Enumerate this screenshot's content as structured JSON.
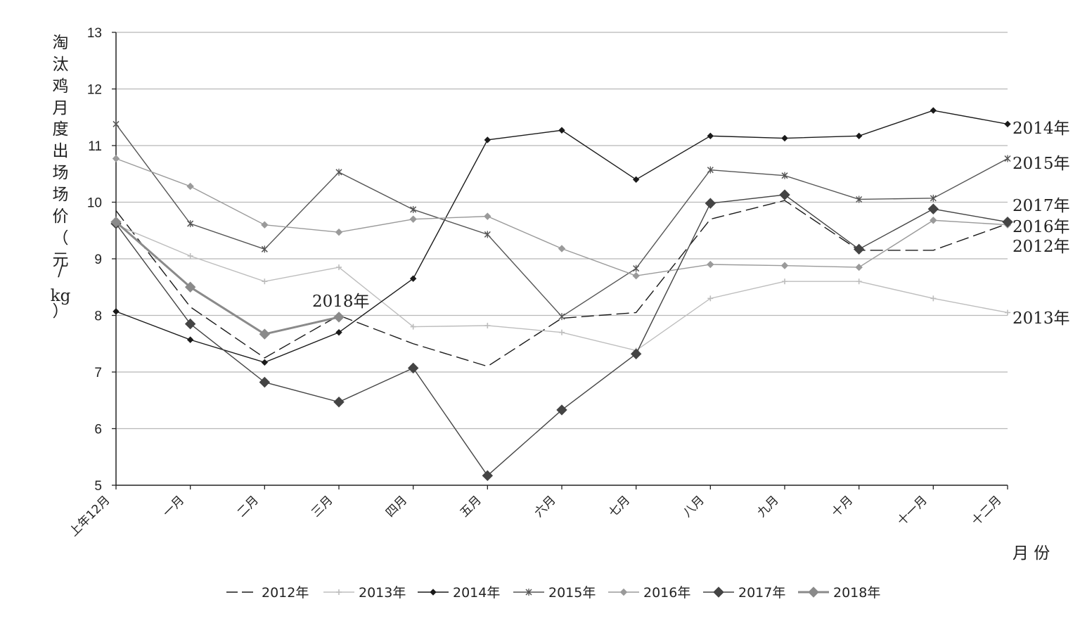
{
  "chart_data": {
    "type": "line",
    "ylabel_chars": [
      "淘",
      "汰",
      "鸡",
      "月",
      "度",
      "出",
      "场",
      "场",
      "价",
      "（",
      "元",
      "/",
      "kg",
      "）"
    ],
    "xlabel": "月 份",
    "categories": [
      "上年12月",
      "一月",
      "二月",
      "三月",
      "四月",
      "五月",
      "六月",
      "七月",
      "八月",
      "九月",
      "十月",
      "十一月",
      "十二月"
    ],
    "ylim": [
      5,
      13
    ],
    "yticks": [
      "5",
      "6",
      "7",
      "8",
      "9",
      "10",
      "11",
      "12",
      "13"
    ],
    "grid": true,
    "legend_position": "bottom",
    "series": [
      {
        "name": "2012年",
        "color": "#1a1a1a",
        "marker": "none",
        "dash": "18,7",
        "values": [
          9.85,
          8.15,
          7.25,
          8.0,
          7.5,
          7.1,
          7.95,
          8.05,
          9.7,
          10.03,
          9.15,
          9.15,
          9.62
        ]
      },
      {
        "name": "2013年",
        "color": "#bdbdbd",
        "marker": "plus",
        "values": [
          9.6,
          9.05,
          8.6,
          8.85,
          7.8,
          7.82,
          7.7,
          7.38,
          8.3,
          8.6,
          8.6,
          8.3,
          8.05
        ]
      },
      {
        "name": "2014年",
        "color": "#1a1a1a",
        "marker": "diamond-small",
        "values": [
          8.07,
          7.57,
          7.17,
          7.7,
          8.65,
          11.1,
          11.27,
          10.4,
          11.17,
          11.13,
          11.17,
          11.62,
          11.38
        ]
      },
      {
        "name": "2015年",
        "color": "#555555",
        "marker": "star",
        "values": [
          11.38,
          9.62,
          9.17,
          10.53,
          9.87,
          9.43,
          7.98,
          8.83,
          10.57,
          10.47,
          10.05,
          10.07,
          10.77
        ]
      },
      {
        "name": "2016年",
        "color": "#9a9a9a",
        "marker": "diamond-mid",
        "values": [
          10.77,
          10.28,
          9.6,
          9.47,
          9.7,
          9.75,
          9.18,
          8.7,
          8.9,
          8.88,
          8.85,
          9.68,
          9.6
        ]
      },
      {
        "name": "2017年",
        "color": "#444444",
        "marker": "diamond-big",
        "values": [
          9.62,
          7.85,
          6.82,
          6.47,
          7.07,
          5.17,
          6.33,
          7.32,
          9.98,
          10.13,
          9.17,
          9.88,
          9.65
        ]
      },
      {
        "name": "2018年",
        "color": "#8a8a8a",
        "marker": "diamond-gray",
        "width": 3,
        "values": [
          9.65,
          8.5,
          7.67,
          7.97,
          null,
          null,
          null,
          null,
          null,
          null,
          null,
          null,
          null
        ]
      }
    ],
    "annotations": [
      {
        "text": "2014年",
        "series": "2014年"
      },
      {
        "text": "2015年",
        "series": "2015年"
      },
      {
        "text": "2017年",
        "series": "2017年"
      },
      {
        "text": "2016年",
        "series": "2016年"
      },
      {
        "text": "2012年",
        "series": "2012年"
      },
      {
        "text": "2013年",
        "series": "2013年"
      },
      {
        "text": "2018年",
        "series": "2018年"
      }
    ]
  }
}
